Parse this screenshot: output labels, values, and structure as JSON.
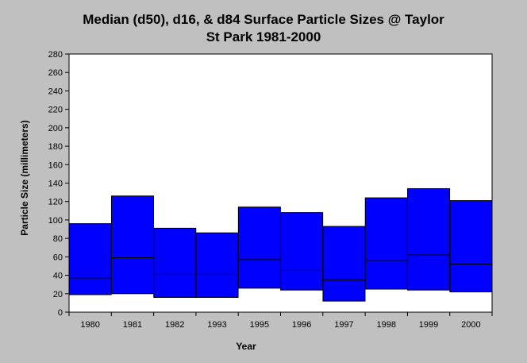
{
  "chart_data": {
    "type": "bar",
    "subtype": "floating-range-with-median",
    "title_lines": [
      "Median (d50), d16, & d84 Surface Particle Sizes @ Taylor",
      "St Park 1981-2000"
    ],
    "xlabel": "Year",
    "ylabel": "Particle Size (millimeters)",
    "ylim": [
      0,
      280
    ],
    "yticks": [
      0,
      20,
      40,
      60,
      80,
      100,
      120,
      140,
      160,
      180,
      200,
      220,
      240,
      260,
      280
    ],
    "categories": [
      "1980",
      "1981",
      "1982",
      "1993",
      "1995",
      "1996",
      "1997",
      "1998",
      "1999",
      "2000"
    ],
    "series": [
      {
        "key": "d16",
        "values": [
          19,
          20,
          16,
          16,
          26,
          24,
          12,
          25,
          24,
          22
        ]
      },
      {
        "key": "d50",
        "values": [
          37,
          59,
          41,
          41,
          57,
          46,
          35,
          56,
          62,
          52
        ]
      },
      {
        "key": "d84",
        "values": [
          96,
          126,
          91,
          86,
          114,
          108,
          93,
          124,
          134,
          121
        ]
      }
    ],
    "grid": false,
    "colors": {
      "bar_fill": "#0000ff",
      "bar_stroke": "#000000",
      "plot_bg": "#ffffff",
      "page_bg": "#c0c0c0"
    }
  }
}
